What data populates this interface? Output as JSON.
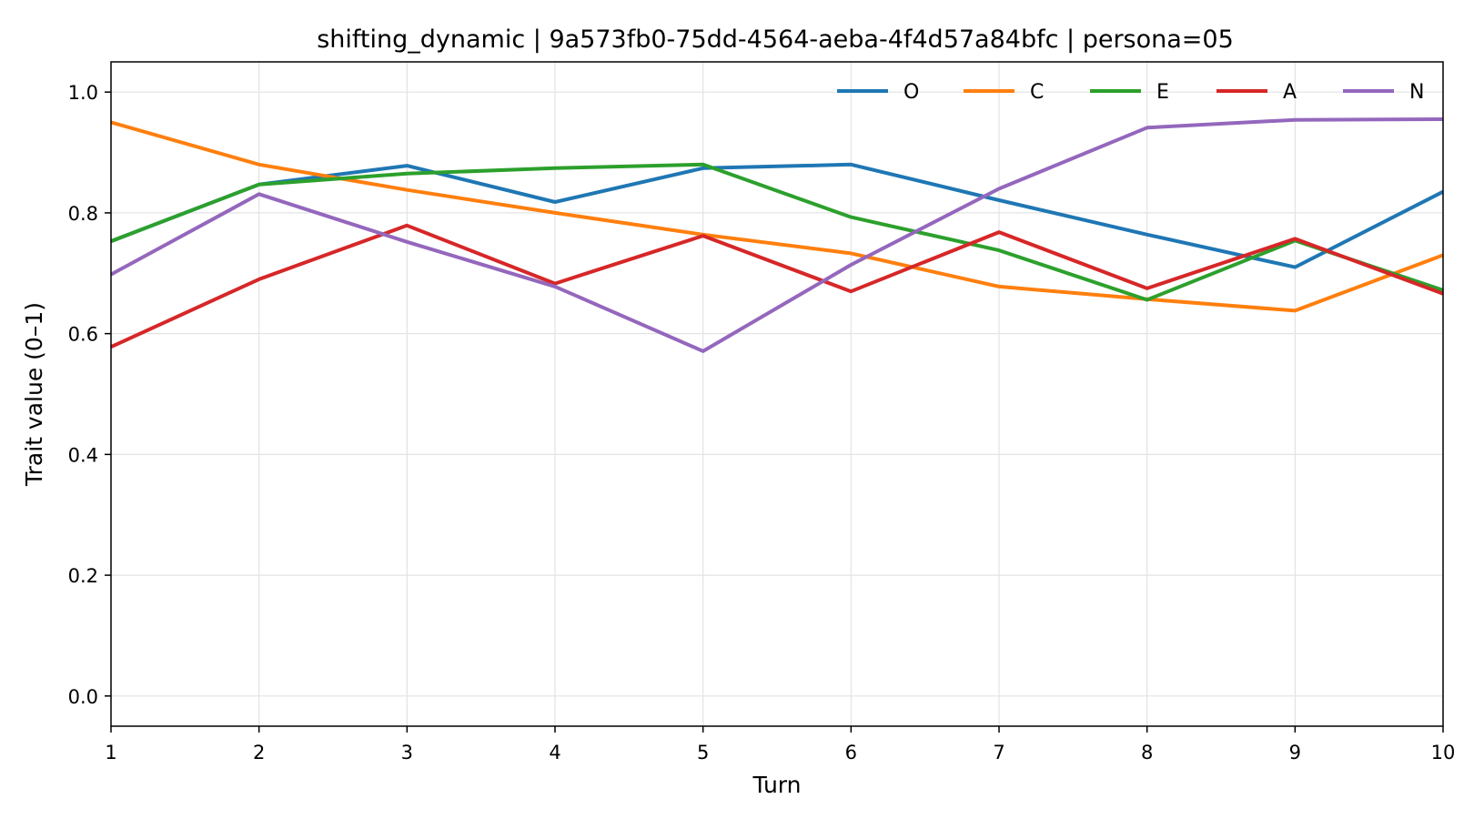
{
  "chart_data": {
    "type": "line",
    "title": "shifting_dynamic | 9a573fb0-75dd-4564-aeba-4f4d57a84bfc | persona=05",
    "xlabel": "Turn",
    "ylabel": "Trait value (0–1)",
    "x": [
      1,
      2,
      3,
      4,
      5,
      6,
      7,
      8,
      9,
      10
    ],
    "xticks": [
      "1",
      "2",
      "3",
      "4",
      "5",
      "6",
      "7",
      "8",
      "9",
      "10"
    ],
    "yticks": [
      "0.0",
      "0.2",
      "0.4",
      "0.6",
      "0.8",
      "1.0"
    ],
    "xlim": [
      1,
      10
    ],
    "ylim": [
      -0.05,
      1.05
    ],
    "grid": true,
    "legend_position": "top-right",
    "series": [
      {
        "name": "O",
        "color": "#1f77b4",
        "values": [
          0.753,
          0.847,
          0.878,
          0.818,
          0.874,
          0.88,
          0.821,
          0.764,
          0.71,
          0.835
        ]
      },
      {
        "name": "C",
        "color": "#ff7f0e",
        "values": [
          0.95,
          0.88,
          0.838,
          0.8,
          0.764,
          0.733,
          0.678,
          0.657,
          0.638,
          0.73
        ]
      },
      {
        "name": "E",
        "color": "#2ca02c",
        "values": [
          0.753,
          0.847,
          0.865,
          0.874,
          0.88,
          0.793,
          0.738,
          0.656,
          0.754,
          0.672
        ]
      },
      {
        "name": "A",
        "color": "#d62728",
        "values": [
          0.578,
          0.69,
          0.779,
          0.683,
          0.762,
          0.67,
          0.768,
          0.675,
          0.757,
          0.666
        ]
      },
      {
        "name": "N",
        "color": "#9467bd",
        "values": [
          0.698,
          0.831,
          0.752,
          0.678,
          0.571,
          0.714,
          0.84,
          0.941,
          0.954,
          0.955
        ]
      }
    ]
  }
}
